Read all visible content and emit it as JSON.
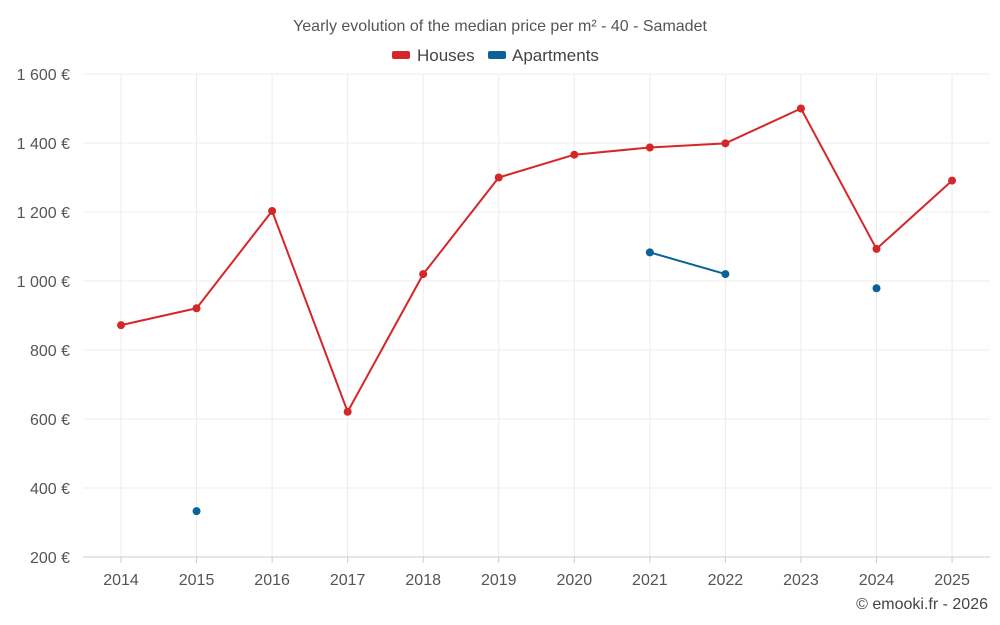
{
  "chart_data": {
    "type": "line",
    "title": "Yearly evolution of the median price per m² - 40 - Samadet",
    "categories": [
      "2014",
      "2015",
      "2016",
      "2017",
      "2018",
      "2019",
      "2020",
      "2021",
      "2022",
      "2023",
      "2024",
      "2025"
    ],
    "series": [
      {
        "name": "Houses",
        "color": "#d62728",
        "values": [
          872,
          921,
          1203,
          621,
          1020,
          1300,
          1366,
          1387,
          1399,
          1500,
          1093,
          1291
        ]
      },
      {
        "name": "Apartments",
        "color": "#0b6299",
        "values": [
          null,
          333,
          null,
          null,
          null,
          null,
          null,
          1083,
          1020,
          null,
          979,
          null
        ]
      }
    ],
    "ylim": [
      200,
      1600
    ],
    "yticks": [
      200,
      400,
      600,
      800,
      1000,
      1200,
      1400,
      1600
    ],
    "ytick_labels": [
      "200 €",
      "400 €",
      "600 €",
      "800 €",
      "1 000 €",
      "1 200 €",
      "1 400 €",
      "1 600 €"
    ],
    "xlabel": "",
    "ylabel": "",
    "grid": true,
    "legend_position": "top-center"
  },
  "credit": "© emooki.fr - 2026"
}
